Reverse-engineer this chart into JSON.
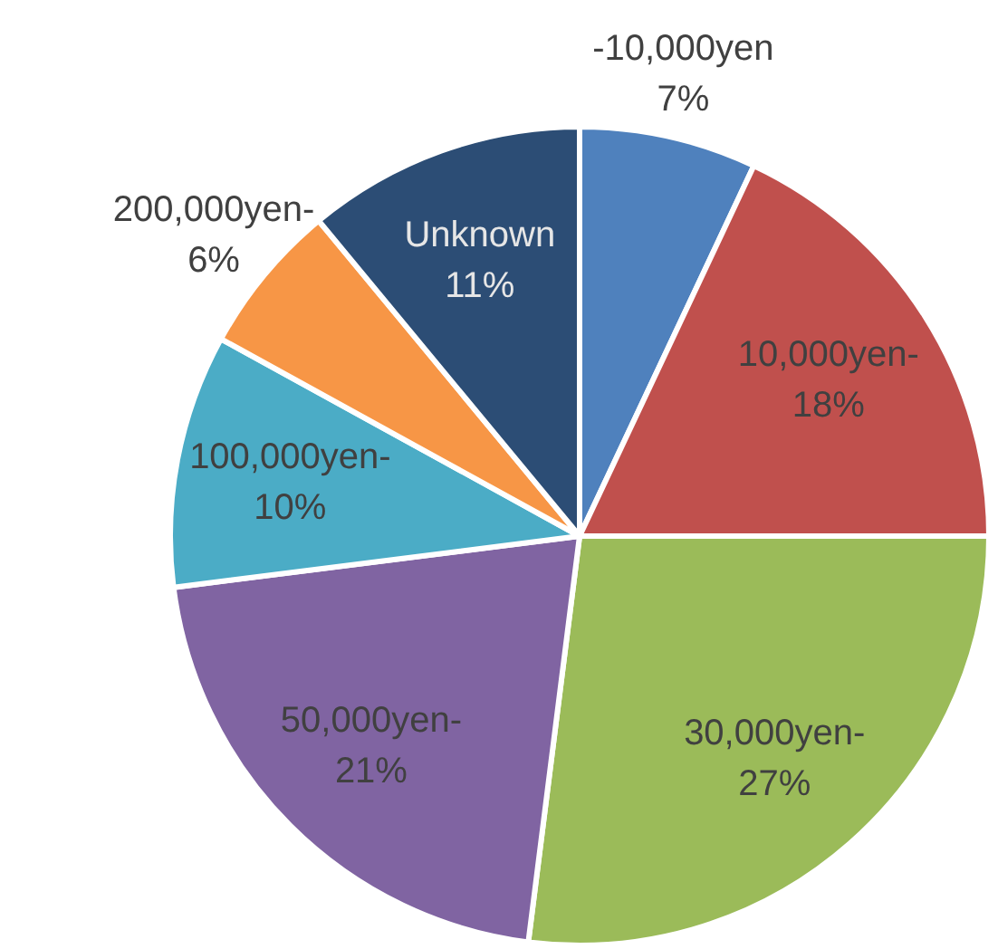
{
  "chart_data": {
    "type": "pie",
    "categories": [
      "-10,000yen",
      "10,000yen-",
      "30,000yen-",
      "50,000yen-",
      "100,000yen-",
      "200,000yen-",
      "Unknown"
    ],
    "values": [
      7,
      18,
      27,
      21,
      10,
      6,
      11
    ],
    "value_labels": [
      "7%",
      "18%",
      "27%",
      "21%",
      "10%",
      "6%",
      "11%"
    ],
    "colors": [
      "#4f81bd",
      "#c0504d",
      "#9bbb59",
      "#8064a2",
      "#4bacc6",
      "#f79646",
      "#2c4d75"
    ]
  }
}
